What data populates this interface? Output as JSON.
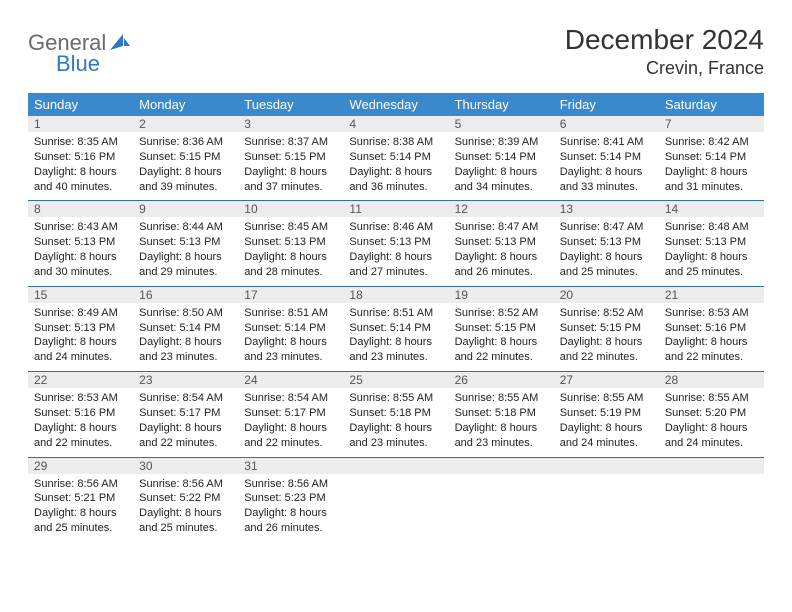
{
  "brand": {
    "word1": "General",
    "word2": "Blue",
    "color_gray": "#6a6a6a",
    "color_blue": "#2f78c4"
  },
  "title": "December 2024",
  "location": "Crevin, France",
  "colors": {
    "header_bg": "#3a89cc",
    "header_text": "#ffffff",
    "daynum_bg": "#ececec",
    "daynum_border": "#2f6fa8",
    "body_text": "#222222",
    "background": "#ffffff"
  },
  "fonts": {
    "title_size_pt": 21,
    "location_size_pt": 13,
    "weekday_size_pt": 10,
    "daynum_size_pt": 9,
    "cell_size_pt": 8
  },
  "weekdays": [
    "Sunday",
    "Monday",
    "Tuesday",
    "Wednesday",
    "Thursday",
    "Friday",
    "Saturday"
  ],
  "weeks": [
    [
      {
        "n": "1",
        "sunrise": "8:35 AM",
        "sunset": "5:16 PM",
        "daylight": "8 hours and 40 minutes."
      },
      {
        "n": "2",
        "sunrise": "8:36 AM",
        "sunset": "5:15 PM",
        "daylight": "8 hours and 39 minutes."
      },
      {
        "n": "3",
        "sunrise": "8:37 AM",
        "sunset": "5:15 PM",
        "daylight": "8 hours and 37 minutes."
      },
      {
        "n": "4",
        "sunrise": "8:38 AM",
        "sunset": "5:14 PM",
        "daylight": "8 hours and 36 minutes."
      },
      {
        "n": "5",
        "sunrise": "8:39 AM",
        "sunset": "5:14 PM",
        "daylight": "8 hours and 34 minutes."
      },
      {
        "n": "6",
        "sunrise": "8:41 AM",
        "sunset": "5:14 PM",
        "daylight": "8 hours and 33 minutes."
      },
      {
        "n": "7",
        "sunrise": "8:42 AM",
        "sunset": "5:14 PM",
        "daylight": "8 hours and 31 minutes."
      }
    ],
    [
      {
        "n": "8",
        "sunrise": "8:43 AM",
        "sunset": "5:13 PM",
        "daylight": "8 hours and 30 minutes."
      },
      {
        "n": "9",
        "sunrise": "8:44 AM",
        "sunset": "5:13 PM",
        "daylight": "8 hours and 29 minutes."
      },
      {
        "n": "10",
        "sunrise": "8:45 AM",
        "sunset": "5:13 PM",
        "daylight": "8 hours and 28 minutes."
      },
      {
        "n": "11",
        "sunrise": "8:46 AM",
        "sunset": "5:13 PM",
        "daylight": "8 hours and 27 minutes."
      },
      {
        "n": "12",
        "sunrise": "8:47 AM",
        "sunset": "5:13 PM",
        "daylight": "8 hours and 26 minutes."
      },
      {
        "n": "13",
        "sunrise": "8:47 AM",
        "sunset": "5:13 PM",
        "daylight": "8 hours and 25 minutes."
      },
      {
        "n": "14",
        "sunrise": "8:48 AM",
        "sunset": "5:13 PM",
        "daylight": "8 hours and 25 minutes."
      }
    ],
    [
      {
        "n": "15",
        "sunrise": "8:49 AM",
        "sunset": "5:13 PM",
        "daylight": "8 hours and 24 minutes."
      },
      {
        "n": "16",
        "sunrise": "8:50 AM",
        "sunset": "5:14 PM",
        "daylight": "8 hours and 23 minutes."
      },
      {
        "n": "17",
        "sunrise": "8:51 AM",
        "sunset": "5:14 PM",
        "daylight": "8 hours and 23 minutes."
      },
      {
        "n": "18",
        "sunrise": "8:51 AM",
        "sunset": "5:14 PM",
        "daylight": "8 hours and 23 minutes."
      },
      {
        "n": "19",
        "sunrise": "8:52 AM",
        "sunset": "5:15 PM",
        "daylight": "8 hours and 22 minutes."
      },
      {
        "n": "20",
        "sunrise": "8:52 AM",
        "sunset": "5:15 PM",
        "daylight": "8 hours and 22 minutes."
      },
      {
        "n": "21",
        "sunrise": "8:53 AM",
        "sunset": "5:16 PM",
        "daylight": "8 hours and 22 minutes."
      }
    ],
    [
      {
        "n": "22",
        "sunrise": "8:53 AM",
        "sunset": "5:16 PM",
        "daylight": "8 hours and 22 minutes."
      },
      {
        "n": "23",
        "sunrise": "8:54 AM",
        "sunset": "5:17 PM",
        "daylight": "8 hours and 22 minutes."
      },
      {
        "n": "24",
        "sunrise": "8:54 AM",
        "sunset": "5:17 PM",
        "daylight": "8 hours and 22 minutes."
      },
      {
        "n": "25",
        "sunrise": "8:55 AM",
        "sunset": "5:18 PM",
        "daylight": "8 hours and 23 minutes."
      },
      {
        "n": "26",
        "sunrise": "8:55 AM",
        "sunset": "5:18 PM",
        "daylight": "8 hours and 23 minutes."
      },
      {
        "n": "27",
        "sunrise": "8:55 AM",
        "sunset": "5:19 PM",
        "daylight": "8 hours and 24 minutes."
      },
      {
        "n": "28",
        "sunrise": "8:55 AM",
        "sunset": "5:20 PM",
        "daylight": "8 hours and 24 minutes."
      }
    ],
    [
      {
        "n": "29",
        "sunrise": "8:56 AM",
        "sunset": "5:21 PM",
        "daylight": "8 hours and 25 minutes."
      },
      {
        "n": "30",
        "sunrise": "8:56 AM",
        "sunset": "5:22 PM",
        "daylight": "8 hours and 25 minutes."
      },
      {
        "n": "31",
        "sunrise": "8:56 AM",
        "sunset": "5:23 PM",
        "daylight": "8 hours and 26 minutes."
      },
      null,
      null,
      null,
      null
    ]
  ],
  "labels": {
    "sunrise": "Sunrise:",
    "sunset": "Sunset:",
    "daylight": "Daylight:"
  }
}
